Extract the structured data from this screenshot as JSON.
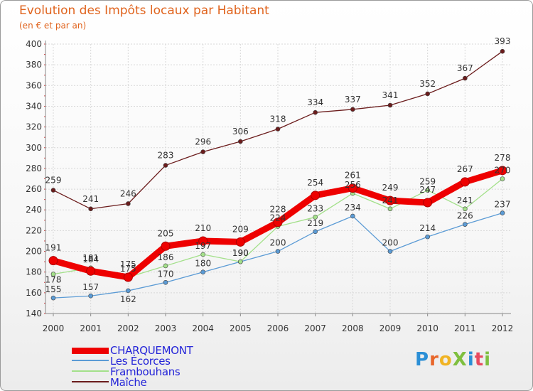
{
  "title": "Evolution des Impôts locaux par Habitant",
  "subtitle": "(en € et par an)",
  "logo_text": "ProXiti",
  "chart_data": {
    "type": "line",
    "title": "Evolution des Impôts locaux par Habitant",
    "subtitle": "(en € et par an)",
    "xlabel": "",
    "ylabel": "",
    "ylim": [
      140,
      400
    ],
    "yticks": [
      140,
      160,
      180,
      200,
      220,
      240,
      260,
      280,
      300,
      320,
      340,
      360,
      380,
      400
    ],
    "grid": true,
    "legend_position": "bottom-left",
    "categories": [
      "2000",
      "2001",
      "2002",
      "2003",
      "2004",
      "2005",
      "2006",
      "2007",
      "2008",
      "2009",
      "2010",
      "2011",
      "2012"
    ],
    "series": [
      {
        "name": "Maîche",
        "color": "#6b1c1c",
        "values": [
          259,
          241,
          246,
          283,
          296,
          306,
          318,
          334,
          337,
          341,
          352,
          367,
          393
        ]
      },
      {
        "name": "Les Écorces",
        "color": "#5b9bd5",
        "values": [
          155,
          157,
          162,
          170,
          180,
          190,
          200,
          219,
          234,
          200,
          214,
          226,
          237
        ]
      },
      {
        "name": "Frambouhans",
        "color": "#a3e08a",
        "values": [
          178,
          184,
          175,
          186,
          197,
          190,
          224,
          233,
          256,
          241,
          259,
          241,
          270
        ]
      },
      {
        "name": "CHARQUEMONT",
        "color": "#ee0000",
        "values": [
          191,
          181,
          175,
          205,
          210,
          209,
          228,
          254,
          261,
          249,
          247,
          267,
          278
        ]
      }
    ],
    "legend": [
      "CHARQUEMONT",
      "Les Écorces",
      "Frambouhans",
      "Maîche"
    ]
  }
}
